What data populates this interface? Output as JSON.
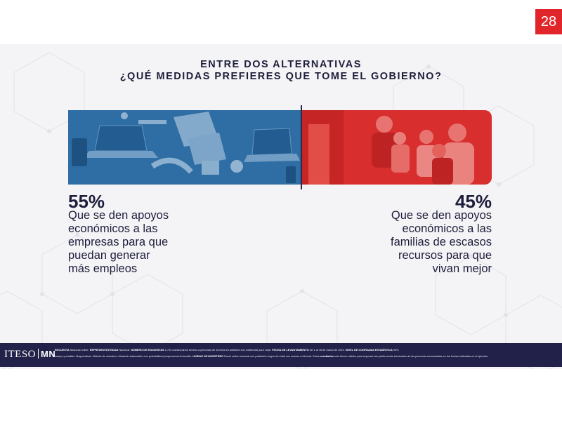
{
  "page_number": "28",
  "title_line1": "ENTRE DOS ALTERNATIVAS",
  "title_line2": "¿QUÉ MEDIDAS PREFIERES QUE TOME EL GOBIERNO?",
  "chart_data": {
    "type": "bar",
    "orientation": "horizontal-stacked-100",
    "title": "ENTRE DOS ALTERNATIVAS ¿QUÉ MEDIDAS PREFIERES QUE TOME EL GOBIERNO?",
    "categories": [
      "Que se den apoyos económicos a las empresas para que puedan generar más empleos",
      "Que se den apoyos económicos a las familias de escasos recursos para que vivan mejor"
    ],
    "values": [
      55,
      45
    ],
    "labels": [
      "55%",
      "45%"
    ],
    "colors": [
      "#2f6ea4",
      "#d92e2e"
    ],
    "left_label_lines": [
      "Que se den apoyos",
      "económicos a las",
      "empresas para que",
      "puedan generar",
      "más empleos"
    ],
    "right_label_lines": [
      "Que se den apoyos",
      "económicos a las",
      "familias de escasos",
      "recursos para que",
      "vivan mejor"
    ]
  },
  "footer": {
    "logo_left": "ITESO",
    "logo_right": "MN",
    "line1": [
      {
        "b": "ENCUESTA",
        "t": " Nacional online.  "
      },
      {
        "b": "REPRESENTATIVIDAD",
        "t": " Nacional.  "
      },
      {
        "b": "NÚMERO DE ENCUESTAS",
        "t": " 1,734 cuestionarios hechos a personas de 18 años en adelante con credencial para votar.  "
      },
      {
        "b": "FECHA DE LEVANTAMIENTO",
        "t": " del 1 al 16 de marzo de 2021.  "
      },
      {
        "b": "NIVEL DE CONFIANZA ESTADÍSTICA",
        "t": " 95%"
      }
    ],
    "line2": [
      {
        "b": "",
        "t": "campo y análisis: Mayoredicas. Método de muestreo: Aleatorio sistemático con probabilidad proporcional al tamaño.  "
      },
      {
        "b": "UNIDAD DE MUESTREO",
        "t": " Panel online nacional con población mayor de edad con acceso a internet.  Estos "
      },
      {
        "b": "resultados",
        "t": " solo tienen validez para expresar las preferencias electorales de las personas encuestadas en las fechas indicadas en el ejercicio."
      }
    ]
  }
}
